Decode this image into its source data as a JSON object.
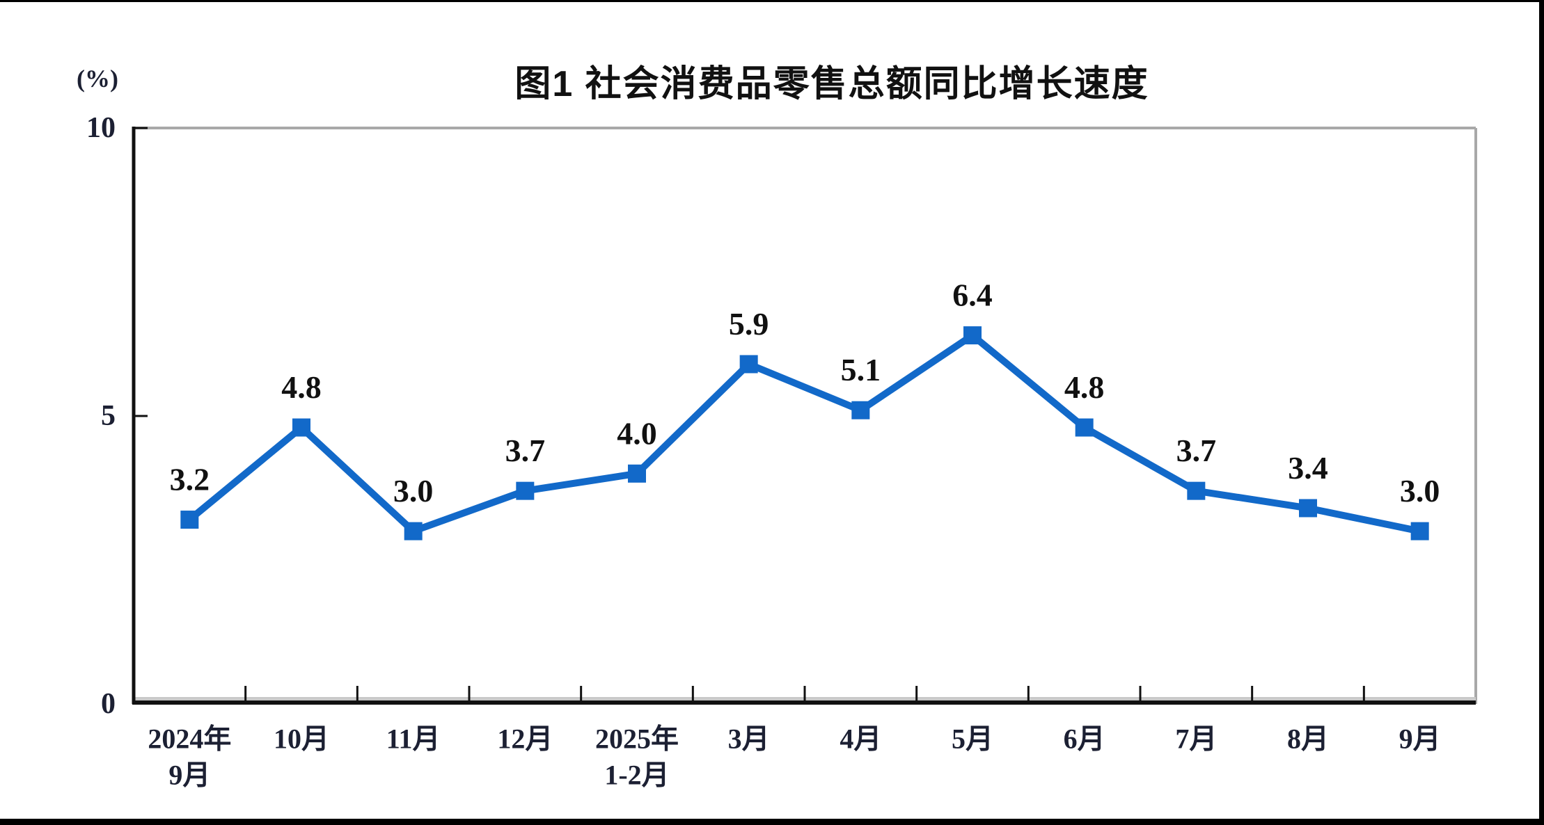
{
  "title": "图1  社会消费品零售总额同比增长速度",
  "unit_label": "(%)",
  "chart_data": {
    "type": "line",
    "title": "图1  社会消费品零售总额同比增长速度",
    "ylabel": "(%)",
    "xlabel": "",
    "categories": [
      [
        "2024年",
        "9月"
      ],
      [
        "10月"
      ],
      [
        "11月"
      ],
      [
        "12月"
      ],
      [
        "2025年",
        "1-2月"
      ],
      [
        "3月"
      ],
      [
        "4月"
      ],
      [
        "5月"
      ],
      [
        "6月"
      ],
      [
        "7月"
      ],
      [
        "8月"
      ],
      [
        "9月"
      ]
    ],
    "values": [
      3.2,
      4.8,
      3.0,
      3.7,
      4.0,
      5.9,
      5.1,
      6.4,
      4.8,
      3.7,
      3.4,
      3.0
    ],
    "data_labels": [
      "3.2",
      "4.8",
      "3.0",
      "3.7",
      "4.0",
      "5.9",
      "5.1",
      "6.4",
      "4.8",
      "3.7",
      "3.4",
      "3.0"
    ],
    "y_ticks": [
      0,
      5,
      10
    ],
    "ylim": [
      0,
      10
    ],
    "grid": false,
    "legend": false,
    "marker": "square",
    "colors": {
      "line": "#1269c9",
      "axis": "#111111",
      "box_border": "#a8a8a8",
      "axis_shadow": "#c9c9c9",
      "tick_text": "#1c2033",
      "label_text": "#111111"
    }
  }
}
